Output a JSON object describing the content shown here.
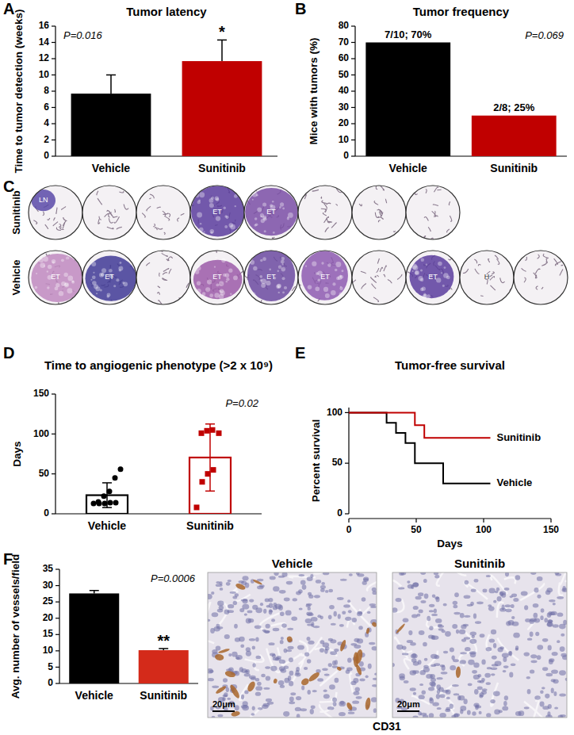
{
  "chart_data": [
    {
      "type": "bar",
      "panel": "A",
      "title": "Tumor latency",
      "y_label": "Time to tumor detection (weeks)",
      "categories": [
        "Vehicle",
        "Sunitinib"
      ],
      "values": [
        7.7,
        11.7
      ],
      "errors": [
        2.3,
        2.6
      ],
      "colors": [
        "#000000",
        "#c00000"
      ],
      "ylim": [
        0,
        16
      ],
      "yticks": [
        0,
        2,
        4,
        6,
        8,
        10,
        12,
        14,
        16
      ],
      "annotation": "P=0.016",
      "significance": [
        null,
        "*"
      ]
    },
    {
      "type": "bar",
      "panel": "B",
      "title": "Tumor frequency",
      "y_label": "Mice with tumors (%)",
      "categories": [
        "Vehicle",
        "Sunitinib"
      ],
      "values": [
        70,
        25
      ],
      "data_labels": true,
      "value_labels": [
        "7/10; 70%",
        "2/8; 25%"
      ],
      "colors": [
        "#000000",
        "#c00000"
      ],
      "ylim": [
        0,
        80
      ],
      "yticks": [
        0,
        10,
        20,
        30,
        40,
        50,
        60,
        70,
        80
      ],
      "annotation": "P=0.069"
    },
    {
      "type": "image_grid",
      "panel": "C",
      "rows": [
        {
          "name": "Sunitinib",
          "labels": [
            "LN",
            null,
            null,
            "ET",
            "ET",
            null,
            null,
            null
          ]
        },
        {
          "name": "Vehicle",
          "labels": [
            "ET",
            "ET",
            null,
            "ET",
            "ET",
            "ET",
            null,
            "ET",
            "H",
            null
          ]
        }
      ]
    },
    {
      "type": "dot_bar",
      "panel": "D",
      "title": "Time to angiogenic phenotype (>2 x 10⁹)",
      "y_label": "Days",
      "categories": [
        "Vehicle",
        "Sunitinib"
      ],
      "values": [
        23.3,
        70.5
      ],
      "errors": [
        15.5,
        42
      ],
      "points": [
        [
          13,
          13,
          13,
          14,
          14,
          15,
          22,
          28,
          45,
          56
        ],
        [
          8,
          40,
          50,
          55,
          101,
          101,
          104,
          105
        ]
      ],
      "colors": [
        "#000000",
        "#c00000"
      ],
      "ylim": [
        0,
        150
      ],
      "yticks": [
        0,
        50,
        100,
        150
      ],
      "annotation": "P=0.02"
    },
    {
      "type": "line",
      "panel": "E",
      "title": "Tumor-free survival",
      "x_label": "Days",
      "y_label": "Percent survival",
      "line_style": "step",
      "xlim": [
        0,
        150
      ],
      "xticks": [
        0,
        50,
        100,
        150
      ],
      "ylim": [
        0,
        105
      ],
      "yticks": [
        0,
        50,
        100
      ],
      "series": [
        {
          "name": "Vehicle",
          "color": "#000000",
          "x": [
            0,
            28,
            35,
            42,
            49,
            70,
            105
          ],
          "values": [
            100,
            90,
            80,
            70,
            50,
            30,
            30
          ]
        },
        {
          "name": "Sunitinib",
          "color": "#c00000",
          "x": [
            0,
            49,
            56,
            105
          ],
          "values": [
            100,
            87.5,
            75,
            75
          ]
        }
      ]
    },
    {
      "type": "bar",
      "panel": "F",
      "y_label": "Avg. number of vessels/field",
      "categories": [
        "Vehicle",
        "Sunitinib"
      ],
      "values": [
        27.6,
        10.2
      ],
      "errors": [
        0.9,
        0.5
      ],
      "colors": [
        "#000000",
        "#d42a1a"
      ],
      "ylim": [
        0,
        35
      ],
      "yticks": [
        0,
        5,
        10,
        15,
        20,
        25,
        30,
        35
      ],
      "annotation": "P=0.0006",
      "significance": [
        null,
        "**"
      ],
      "images": {
        "titles": [
          "Vehicle",
          "Sunitinib"
        ],
        "scale_bar": "20μm",
        "caption": "CD31"
      }
    }
  ]
}
